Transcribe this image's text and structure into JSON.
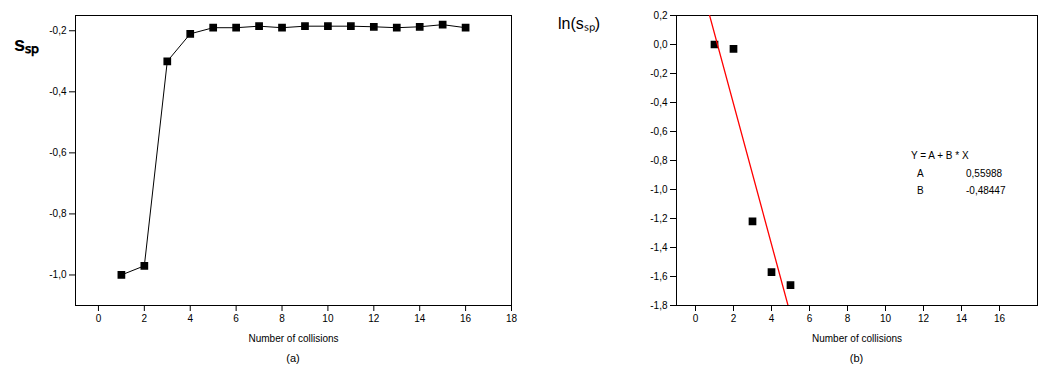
{
  "chart_data": [
    {
      "type": "line",
      "xlabel": "Number of collisions",
      "ylabel": "sₛₚ",
      "caption": "(a)",
      "x": [
        1,
        2,
        3,
        4,
        5,
        6,
        7,
        8,
        9,
        10,
        11,
        12,
        13,
        14,
        15,
        16
      ],
      "values": [
        -1.0,
        -0.97,
        -0.3,
        -0.21,
        -0.19,
        -0.19,
        -0.185,
        -0.19,
        -0.185,
        -0.185,
        -0.185,
        -0.187,
        -0.19,
        -0.187,
        -0.18,
        -0.19
      ],
      "color": "#000000",
      "marker": "square",
      "xlim": [
        -1,
        18
      ],
      "xticks": [
        0,
        2,
        4,
        6,
        8,
        10,
        12,
        14,
        16,
        18
      ],
      "ylim": [
        -1.1,
        -0.15
      ],
      "yticks": [
        {
          "value": -1.0,
          "label": "-1,0"
        },
        {
          "value": -0.8,
          "label": "-0,8"
        },
        {
          "value": -0.6,
          "label": "-0,6"
        },
        {
          "value": -0.4,
          "label": "-0,4"
        },
        {
          "value": -0.2,
          "label": "-0,2"
        }
      ]
    },
    {
      "type": "scatter",
      "xlabel": "Number of collisions",
      "ylabel": "ln(sₛₚ)",
      "caption": "(b)",
      "x": [
        1,
        2,
        3,
        4,
        5
      ],
      "values": [
        0.0,
        -0.03,
        -1.22,
        -1.57,
        -1.66
      ],
      "color": "#000000",
      "marker": "square",
      "fit": {
        "equation": "Y = A + B * X",
        "params": [
          {
            "name": "A",
            "value": 0.55988,
            "label": "0,55988"
          },
          {
            "name": "B",
            "value": -0.48447,
            "label": "-0,48447"
          }
        ],
        "x": [
          0.5,
          5.2
        ],
        "color": "#ff0000"
      },
      "xlim": [
        -1,
        18
      ],
      "xticks": [
        0,
        2,
        4,
        6,
        8,
        10,
        12,
        14,
        16
      ],
      "ylim": [
        -1.8,
        0.2
      ],
      "yticks": [
        {
          "value": -1.8,
          "label": "-1,8"
        },
        {
          "value": -1.6,
          "label": "-1,6"
        },
        {
          "value": -1.4,
          "label": "-1,4"
        },
        {
          "value": -1.2,
          "label": "-1,2"
        },
        {
          "value": -1.0,
          "label": "-1,0"
        },
        {
          "value": -0.8,
          "label": "-0,8"
        },
        {
          "value": -0.6,
          "label": "-0,6"
        },
        {
          "value": -0.4,
          "label": "-0,4"
        },
        {
          "value": -0.2,
          "label": "-0,2"
        },
        {
          "value": 0.0,
          "label": "0,0"
        },
        {
          "value": 0.2,
          "label": "0,2"
        }
      ]
    }
  ]
}
